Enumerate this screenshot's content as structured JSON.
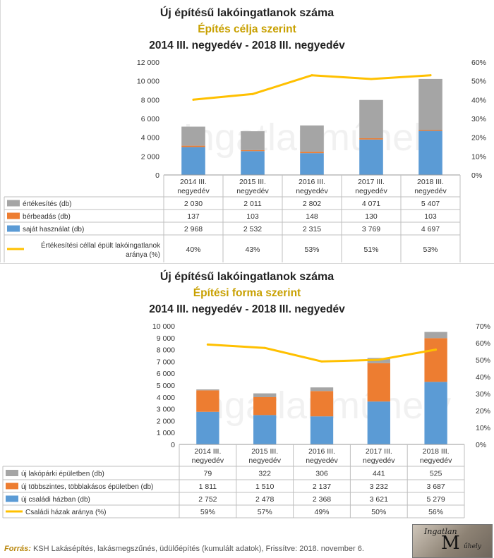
{
  "chart_data": [
    {
      "type": "bar",
      "stacked": true,
      "title": "Új építésű lakóingatlanok száma",
      "subtitle": "Építés célja szerint",
      "period": "2014 III. negyedév - 2018 III. negyedév",
      "categories": [
        [
          "2014 III.",
          "negyedév"
        ],
        [
          "2015 III.",
          "negyedév"
        ],
        [
          "2016 III.",
          "negyedév"
        ],
        [
          "2017 III.",
          "negyedév"
        ],
        [
          "2018 III.",
          "negyedév"
        ]
      ],
      "series": [
        {
          "name": "saját használat (db)",
          "type": "bar",
          "color": "#5b9bd5",
          "values": [
            2968,
            2532,
            2315,
            3769,
            4697
          ],
          "labels": [
            "2 968",
            "2 532",
            "2 315",
            "3 769",
            "4 697"
          ]
        },
        {
          "name": "bérbeadás (db)",
          "type": "bar",
          "color": "#ed7d31",
          "values": [
            137,
            103,
            148,
            130,
            103
          ],
          "labels": [
            "137",
            "103",
            "148",
            "130",
            "103"
          ]
        },
        {
          "name": "értékesítés (db)",
          "type": "bar",
          "color": "#a5a5a5",
          "values": [
            2030,
            2011,
            2802,
            4071,
            5407
          ],
          "labels": [
            "2 030",
            "2 011",
            "2 802",
            "4 071",
            "5 407"
          ]
        },
        {
          "name": "Értékesítési céllal épült lakóingatlanok aránya (%)",
          "name_lines": [
            "Értékesítési céllal épült lakóingatlanok",
            "aránya (%)"
          ],
          "type": "line",
          "axis": "right",
          "color": "#ffc000",
          "values": [
            40,
            43,
            53,
            51,
            53
          ],
          "labels": [
            "40%",
            "43%",
            "53%",
            "51%",
            "53%"
          ]
        }
      ],
      "table_order": [
        2,
        1,
        0,
        3
      ],
      "ylim": [
        0,
        12000
      ],
      "yticks": [
        0,
        2000,
        4000,
        6000,
        8000,
        10000,
        12000
      ],
      "ytick_labels": [
        "0",
        "2 000",
        "4 000",
        "6 000",
        "8 000",
        "10 000",
        "12 000"
      ],
      "y2lim": [
        0,
        60
      ],
      "y2ticks": [
        0,
        10,
        20,
        30,
        40,
        50,
        60
      ],
      "y2tick_labels": [
        "0%",
        "10%",
        "20%",
        "30%",
        "40%",
        "50%",
        "60%"
      ],
      "watermark": "Ingatlanműhely"
    },
    {
      "type": "bar",
      "stacked": true,
      "title": "Új építésű lakóingatlanok száma",
      "subtitle": "Építési forma szerint",
      "period": "2014 III. negyedév - 2018 III. negyedév",
      "categories": [
        [
          "2014 III.",
          "negyedév"
        ],
        [
          "2015 III.",
          "negyedév"
        ],
        [
          "2016 III.",
          "negyedév"
        ],
        [
          "2017 III.",
          "negyedév"
        ],
        [
          "2018 III.",
          "negyedév"
        ]
      ],
      "series": [
        {
          "name": "új családi házban (db)",
          "type": "bar",
          "color": "#5b9bd5",
          "values": [
            2752,
            2478,
            2368,
            3621,
            5279
          ],
          "labels": [
            "2 752",
            "2 478",
            "2 368",
            "3 621",
            "5 279"
          ]
        },
        {
          "name": "új többszintes, többlakásos épületben (db)",
          "type": "bar",
          "color": "#ed7d31",
          "values": [
            1811,
            1510,
            2137,
            3232,
            3687
          ],
          "labels": [
            "1 811",
            "1 510",
            "2 137",
            "3 232",
            "3 687"
          ]
        },
        {
          "name": "új lakópárki épületben (db)",
          "type": "bar",
          "color": "#a5a5a5",
          "values": [
            79,
            322,
            306,
            441,
            525
          ],
          "labels": [
            "79",
            "322",
            "306",
            "441",
            "525"
          ]
        },
        {
          "name": "Családi házak aránya (%)",
          "name_lines": [
            "Családi házak aránya (%)"
          ],
          "type": "line",
          "axis": "right",
          "color": "#ffc000",
          "values": [
            59,
            57,
            49,
            50,
            56
          ],
          "labels": [
            "59%",
            "57%",
            "49%",
            "50%",
            "56%"
          ]
        }
      ],
      "table_order": [
        2,
        1,
        0,
        3
      ],
      "ylim": [
        0,
        10000
      ],
      "yticks": [
        0,
        1000,
        2000,
        3000,
        4000,
        5000,
        6000,
        7000,
        8000,
        9000,
        10000
      ],
      "ytick_labels": [
        "0",
        "1 000",
        "2 000",
        "3 000",
        "4 000",
        "5 000",
        "6 000",
        "7 000",
        "8 000",
        "9 000",
        "10 000"
      ],
      "y2lim": [
        0,
        70
      ],
      "y2ticks": [
        0,
        10,
        20,
        30,
        40,
        50,
        60,
        70
      ],
      "y2tick_labels": [
        "0%",
        "10%",
        "20%",
        "30%",
        "40%",
        "50%",
        "60%",
        "70%"
      ],
      "watermark": "Ingatlanműhely"
    }
  ],
  "footer": {
    "label": "Forrás:",
    "text": " KSH Lakásépítés, lakásmegszűnés, üdülőépítés (kumulált adatok), Frissítve: 2018. november 6."
  },
  "logo": {
    "line1": "Ingatlan",
    "line2": "M",
    "line3": "űhely"
  }
}
